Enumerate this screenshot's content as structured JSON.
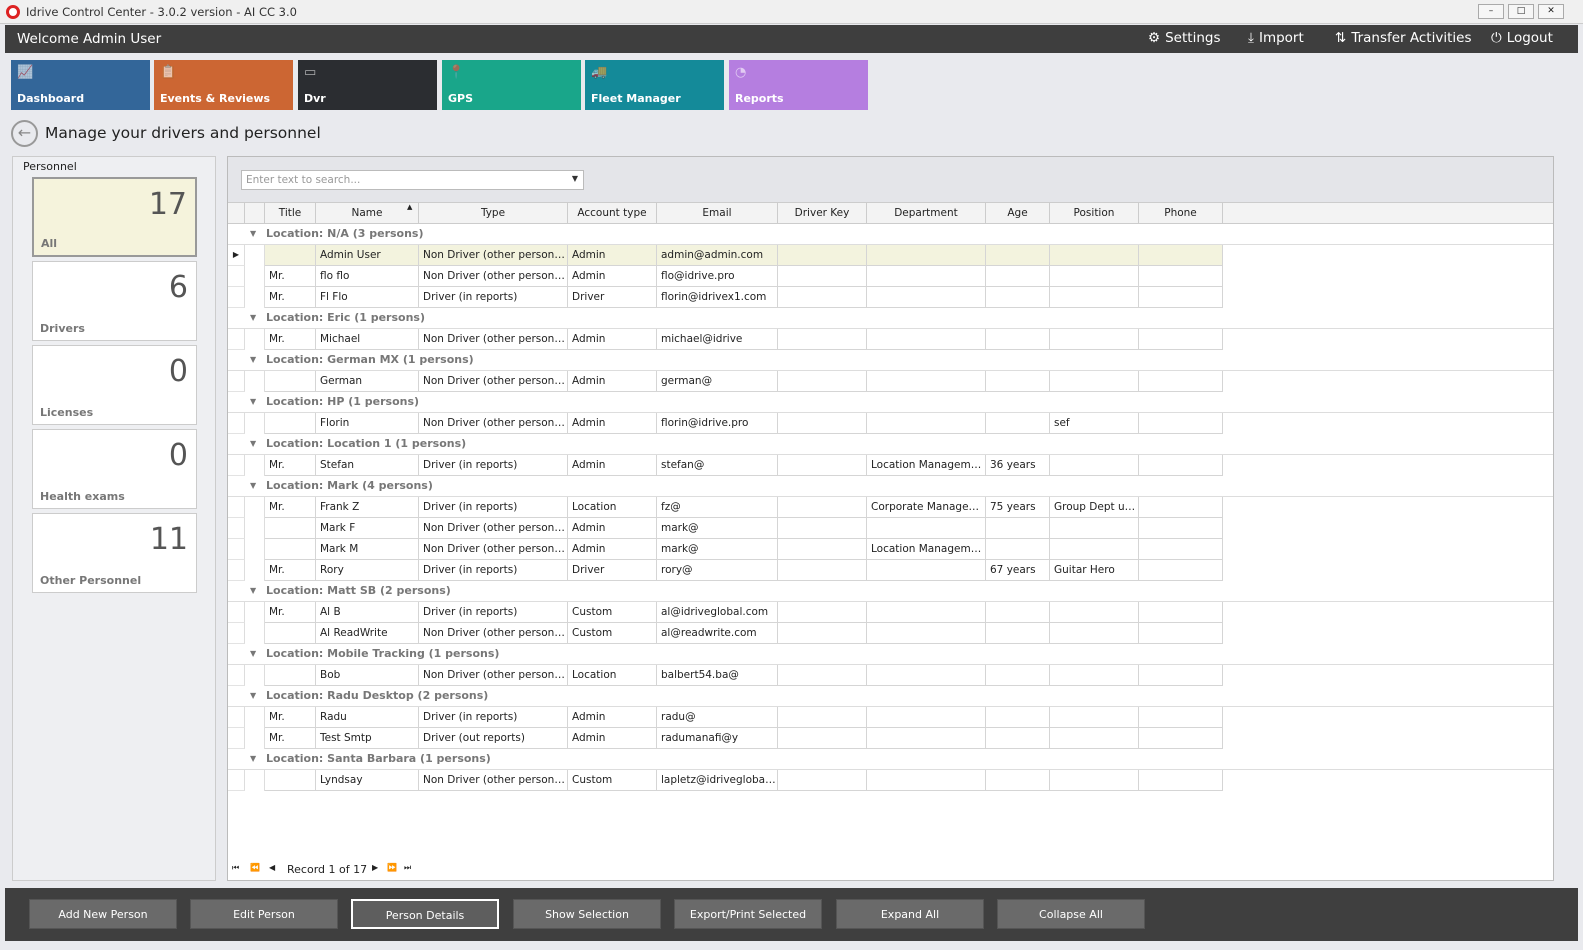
{
  "window": {
    "title": "Idrive Control Center - 3.0.2 version - AI CC 3.0",
    "controls": [
      "–",
      "□",
      "✕"
    ]
  },
  "header": {
    "welcome": "Welcome Admin User",
    "links": [
      {
        "label": "Settings",
        "icon": "gear-icon",
        "glyph": "⚙"
      },
      {
        "label": "Import",
        "icon": "download-icon",
        "glyph": "⤓"
      },
      {
        "label": "Transfer Activities",
        "icon": "transfer-icon",
        "glyph": "⇅"
      },
      {
        "label": "Logout",
        "icon": "power-icon",
        "glyph": "⏻"
      }
    ]
  },
  "tiles": [
    {
      "label": "Dashboard",
      "color": "#336699",
      "glyph": "📈",
      "icon": "chart-icon"
    },
    {
      "label": "Events & Reviews",
      "color": "#cc6633",
      "glyph": "📋",
      "icon": "clipboard-icon"
    },
    {
      "label": "Dvr",
      "color": "#2b2d31",
      "glyph": "▭",
      "icon": "dvr-icon"
    },
    {
      "label": "GPS",
      "color": "#19a68a",
      "glyph": "📍",
      "icon": "map-pin-icon"
    },
    {
      "label": "Fleet Manager",
      "color": "#148a99",
      "glyph": "🚚",
      "icon": "fleet-icon"
    },
    {
      "label": "Reports",
      "color": "#b57ee0",
      "glyph": "◔",
      "icon": "pie-chart-icon"
    }
  ],
  "page_title": "Manage your drivers and personnel",
  "personnel": {
    "heading": "Personnel",
    "cards": [
      {
        "count": "17",
        "label": "All"
      },
      {
        "count": "6",
        "label": "Drivers"
      },
      {
        "count": "0",
        "label": "Licenses"
      },
      {
        "count": "0",
        "label": "Health exams"
      },
      {
        "count": "11",
        "label": "Other Personnel"
      }
    ]
  },
  "search": {
    "placeholder": "Enter text to search..."
  },
  "columns": [
    "Title",
    "Name",
    "Type",
    "Account type",
    "Email",
    "Driver Key",
    "Department",
    "Age",
    "Position",
    "Phone"
  ],
  "sort": {
    "column": "Name",
    "direction": "ascending"
  },
  "groups": [
    {
      "label": "Location: N/A (3 persons)",
      "rows": [
        [
          "",
          "Admin User",
          "Non Driver (other personnel)",
          "Admin",
          "admin@admin.com",
          "",
          "",
          "",
          "",
          ""
        ],
        [
          "Mr.",
          "flo flo",
          "Non Driver (other personnel)",
          "Admin",
          "flo@idrive.pro",
          "",
          "",
          "",
          "",
          ""
        ],
        [
          "Mr.",
          "Fl Flo",
          "Driver (in reports)",
          "Driver",
          "florin@idrivex1.com",
          "",
          "",
          "",
          "",
          ""
        ]
      ]
    },
    {
      "label": "Location: Eric (1 persons)",
      "rows": [
        [
          "Mr.",
          "Michael",
          "Non Driver (other personnel)",
          "Admin",
          "michael@idrive",
          "",
          "",
          "",
          "",
          ""
        ]
      ]
    },
    {
      "label": "Location: German MX (1 persons)",
      "rows": [
        [
          "",
          "German",
          "Non Driver (other personnel)",
          "Admin",
          "german@",
          "",
          "",
          "",
          "",
          ""
        ]
      ]
    },
    {
      "label": "Location: HP (1 persons)",
      "rows": [
        [
          "",
          "Florin",
          "Non Driver (other personnel)",
          "Admin",
          "florin@idrive.pro",
          "",
          "",
          "",
          "sef",
          ""
        ]
      ]
    },
    {
      "label": "Location: Location 1 (1 persons)",
      "rows": [
        [
          "Mr.",
          "Stefan",
          "Driver (in reports)",
          "Admin",
          "stefan@",
          "",
          "Location Management",
          "36 years",
          "",
          ""
        ]
      ]
    },
    {
      "label": "Location: Mark (4 persons)",
      "rows": [
        [
          "Mr.",
          "Frank Z",
          "Driver (in reports)",
          "Location",
          "fz@",
          "",
          "Corporate Management",
          "75 years",
          "Group Dept user",
          ""
        ],
        [
          "",
          "Mark F",
          "Non Driver (other personnel)",
          "Admin",
          "mark@",
          "",
          "",
          "",
          "",
          ""
        ],
        [
          "",
          "Mark M",
          "Non Driver (other personnel)",
          "Admin",
          "mark@",
          "",
          "Location Management",
          "",
          "",
          ""
        ],
        [
          "Mr.",
          "Rory",
          "Driver (in reports)",
          "Driver",
          "rory@",
          "",
          "",
          "67 years",
          "Guitar Hero",
          ""
        ]
      ]
    },
    {
      "label": "Location: Matt SB (2 persons)",
      "rows": [
        [
          "Mr.",
          "Al B",
          "Driver (in reports)",
          "Custom",
          "al@idriveglobal.com",
          "",
          "",
          "",
          "",
          ""
        ],
        [
          "",
          "Al ReadWrite",
          "Non Driver (other personnel)",
          "Custom",
          "al@readwrite.com",
          "",
          "",
          "",
          "",
          ""
        ]
      ]
    },
    {
      "label": "Location: Mobile Tracking (1 persons)",
      "rows": [
        [
          "",
          "Bob",
          "Non Driver (other personnel)",
          "Location",
          "balbert54.ba@",
          "",
          "",
          "",
          "",
          ""
        ]
      ]
    },
    {
      "label": "Location: Radu Desktop (2 persons)",
      "rows": [
        [
          "Mr.",
          "Radu",
          "Driver (in reports)",
          "Admin",
          "radu@",
          "",
          "",
          "",
          "",
          ""
        ],
        [
          "Mr.",
          "Test Smtp",
          "Driver (out reports)",
          "Admin",
          "radumanafi@y",
          "",
          "",
          "",
          "",
          ""
        ]
      ]
    },
    {
      "label": "Location: Santa Barbara (1 persons)",
      "rows": [
        [
          "",
          "Lyndsay",
          "Non Driver (other personnel)",
          "Custom",
          "lapletz@idriveglobal.com",
          "",
          "",
          "",
          "",
          ""
        ]
      ]
    }
  ],
  "pager": {
    "record": "Record 1 of 17"
  },
  "actions": [
    "Add New Person",
    "Edit Person",
    "Person Details",
    "Show Selection",
    "Export/Print Selected",
    "Expand All",
    "Collapse All"
  ]
}
